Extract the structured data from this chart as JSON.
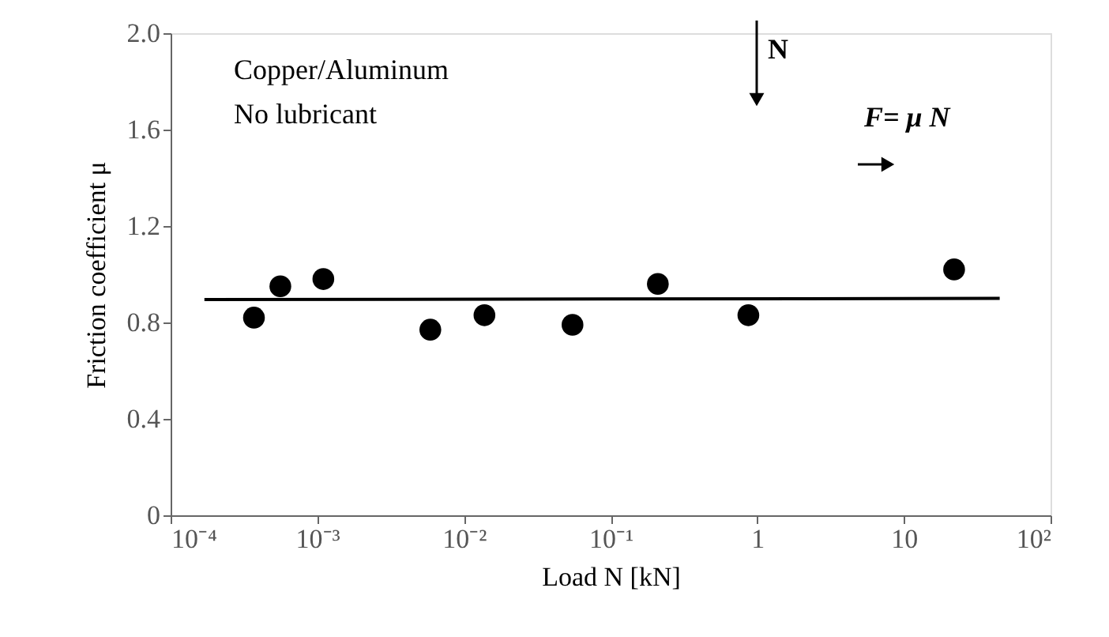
{
  "chart_data": {
    "type": "scatter",
    "xlabel": "Load N [kN]",
    "ylabel": "Friction coefficient μ",
    "log": "x",
    "xlim": [
      0.0001,
      100
    ],
    "ylim": [
      0,
      2.0
    ],
    "xticks": [
      {
        "value": 0.0001,
        "label": "10⁻⁴"
      },
      {
        "value": 0.001,
        "label": "10⁻³"
      },
      {
        "value": 0.01,
        "label": "10⁻²"
      },
      {
        "value": 0.1,
        "label": "10⁻¹"
      },
      1,
      10,
      {
        "value": 100,
        "label": "10²"
      }
    ],
    "yticks": [
      0,
      0.4,
      0.8,
      1.2,
      1.6,
      {
        "value": 2,
        "label": "2.0"
      }
    ],
    "grid": false,
    "marker": "circle",
    "annotations": [
      "Copper/Aluminum",
      "No lubricant",
      "N",
      "F= μ N"
    ],
    "series": [
      {
        "color": "#000000",
        "x": [
          0.00037,
          0.00056,
          0.0011,
          0.0059,
          0.0138,
          0.055,
          0.21,
          0.87,
          22
        ],
        "values": [
          0.82,
          0.95,
          0.98,
          0.77,
          0.83,
          0.79,
          0.96,
          0.83,
          1.02
        ]
      },
      {
        "type": "line",
        "marker": "none",
        "line_style": "solid",
        "color": "#000000",
        "x": [
          0.00017,
          45
        ],
        "values": [
          0.895,
          0.9
        ]
      }
    ]
  }
}
